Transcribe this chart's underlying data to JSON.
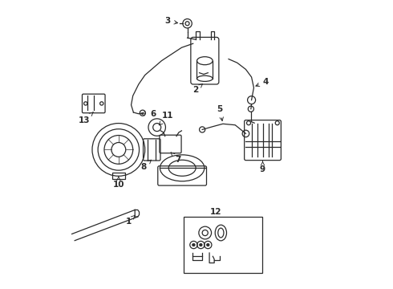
{
  "bg_color": "#ffffff",
  "line_color": "#2a2a2a",
  "lw": 0.9
}
